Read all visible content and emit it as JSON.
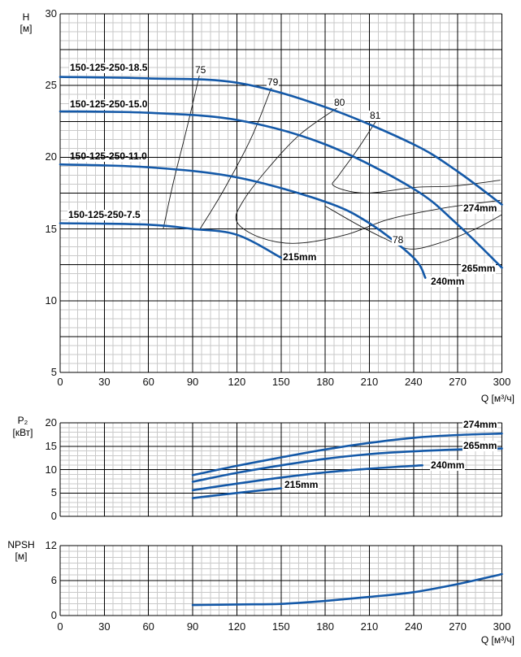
{
  "colors": {
    "curve_blue": "#1459a8",
    "grid_minor": "#c9c9c9",
    "grid_major": "#000000",
    "contour": "#1a1a1a",
    "background": "#ffffff",
    "text": "#000000"
  },
  "axis_titles": {
    "head_line1": "H",
    "head_line2": "[м]",
    "power_line1": "P₂",
    "power_line2": "[кВт]",
    "npsh_line1": "NPSH",
    "npsh_line2": "[м]",
    "flow": "Q [м³/ч]"
  },
  "chart_data": [
    {
      "type": "line",
      "title": "Pump head curves",
      "xlabel": "Q [м³/ч]",
      "ylabel": "H [м]",
      "xlim": [
        0,
        300
      ],
      "ylim": [
        5,
        30
      ],
      "grid": true,
      "x_ticks": [
        "0",
        "30",
        "60",
        "90",
        "120",
        "150",
        "180",
        "210",
        "240",
        "270",
        "300"
      ],
      "y_ticks": [
        "30",
        "25",
        "20",
        "15",
        "10",
        "5"
      ],
      "series": [
        {
          "name": "150-125-250-18.5",
          "diameter": "274mm",
          "points": [
            [
              0,
              25.6
            ],
            [
              60,
              25.5
            ],
            [
              120,
              25.2
            ],
            [
              180,
              23.5
            ],
            [
              240,
              20.9
            ],
            [
              270,
              19.0
            ],
            [
              300,
              16.7
            ]
          ]
        },
        {
          "name": "150-125-250-15.0",
          "diameter": "265mm",
          "points": [
            [
              0,
              23.2
            ],
            [
              60,
              23.1
            ],
            [
              120,
              22.6
            ],
            [
              180,
              20.9
            ],
            [
              240,
              17.8
            ],
            [
              270,
              15.3
            ],
            [
              300,
              12.3
            ]
          ]
        },
        {
          "name": "150-125-250-11.0",
          "diameter": "240mm",
          "points": [
            [
              0,
              19.5
            ],
            [
              60,
              19.3
            ],
            [
              120,
              18.6
            ],
            [
              180,
              16.9
            ],
            [
              210,
              15.4
            ],
            [
              240,
              13.0
            ],
            [
              248,
              11.6
            ]
          ]
        },
        {
          "name": "150-125-250-7.5",
          "diameter": "215mm",
          "points": [
            [
              0,
              15.4
            ],
            [
              60,
              15.3
            ],
            [
              90,
              15.0
            ],
            [
              120,
              14.6
            ],
            [
              150,
              13.0
            ]
          ]
        }
      ],
      "efficiency_contours": [
        {
          "label": "75",
          "points": [
            [
              95,
              25.9
            ],
            [
              86,
              22.0
            ],
            [
              77,
              18.3
            ],
            [
              70,
              15.0
            ]
          ]
        },
        {
          "label": "79",
          "points": [
            [
              144,
              25.0
            ],
            [
              130,
              21.4
            ],
            [
              111,
              17.7
            ],
            [
              95,
              15.0
            ]
          ]
        },
        {
          "label": "80",
          "points": [
            [
              189,
              23.5
            ],
            [
              163,
              21.6
            ],
            [
              141,
              19.2
            ],
            [
              124,
              16.9
            ],
            [
              120,
              15.5
            ],
            [
              136,
              14.4
            ],
            [
              160,
              14.0
            ],
            [
              194,
              14.6
            ],
            [
              224,
              15.7
            ],
            [
              263,
              16.5
            ],
            [
              299,
              17.0
            ]
          ]
        },
        {
          "label": "81",
          "points": [
            [
              215,
              22.6
            ],
            [
              201,
              20.4
            ],
            [
              189,
              18.7
            ],
            [
              186,
              18.0
            ],
            [
              207,
              17.5
            ],
            [
              241,
              17.9
            ],
            [
              268,
              18.0
            ],
            [
              299,
              18.4
            ]
          ]
        },
        {
          "label": "78",
          "points": [
            [
              180,
              16.6
            ],
            [
              202,
              15.3
            ],
            [
              221,
              14.3
            ],
            [
              238,
              13.6
            ],
            [
              260,
              14.1
            ],
            [
              282,
              15.0
            ],
            [
              300,
              16.0
            ]
          ]
        }
      ]
    },
    {
      "type": "line",
      "title": "Shaft power curves",
      "xlabel": "",
      "ylabel": "P₂ [кВт]",
      "xlim": [
        0,
        300
      ],
      "ylim": [
        0,
        20
      ],
      "grid": true,
      "y_ticks": [
        "20",
        "15",
        "10",
        "5",
        "0"
      ],
      "series": [
        {
          "name": "274mm",
          "points": [
            [
              90,
              8.8
            ],
            [
              120,
              10.8
            ],
            [
              150,
              12.6
            ],
            [
              180,
              14.3
            ],
            [
              210,
              15.7
            ],
            [
              240,
              16.8
            ],
            [
              270,
              17.4
            ],
            [
              300,
              17.7
            ]
          ]
        },
        {
          "name": "265mm",
          "points": [
            [
              90,
              7.4
            ],
            [
              120,
              9.3
            ],
            [
              150,
              10.9
            ],
            [
              180,
              12.3
            ],
            [
              210,
              13.3
            ],
            [
              240,
              13.9
            ],
            [
              270,
              14.3
            ],
            [
              300,
              14.5
            ]
          ]
        },
        {
          "name": "240mm",
          "points": [
            [
              90,
              5.6
            ],
            [
              120,
              7.0
            ],
            [
              150,
              8.3
            ],
            [
              180,
              9.4
            ],
            [
              210,
              10.2
            ],
            [
              240,
              10.8
            ],
            [
              246,
              10.9
            ]
          ]
        },
        {
          "name": "215mm",
          "points": [
            [
              90,
              3.9
            ],
            [
              120,
              5.0
            ],
            [
              150,
              6.0
            ]
          ]
        }
      ]
    },
    {
      "type": "line",
      "title": "NPSH curve",
      "xlabel": "Q [м³/ч]",
      "ylabel": "NPSH [м]",
      "xlim": [
        0,
        300
      ],
      "ylim": [
        0,
        12
      ],
      "grid": true,
      "x_ticks": [
        "0",
        "30",
        "60",
        "90",
        "120",
        "150",
        "180",
        "210",
        "240",
        "270",
        "300"
      ],
      "y_ticks": [
        "12",
        "6",
        "0"
      ],
      "series": [
        {
          "name": "NPSH",
          "points": [
            [
              90,
              1.8
            ],
            [
              120,
              1.9
            ],
            [
              150,
              2.0
            ],
            [
              180,
              2.5
            ],
            [
              210,
              3.2
            ],
            [
              240,
              4.0
            ],
            [
              270,
              5.4
            ],
            [
              300,
              7.1
            ]
          ]
        }
      ]
    }
  ]
}
